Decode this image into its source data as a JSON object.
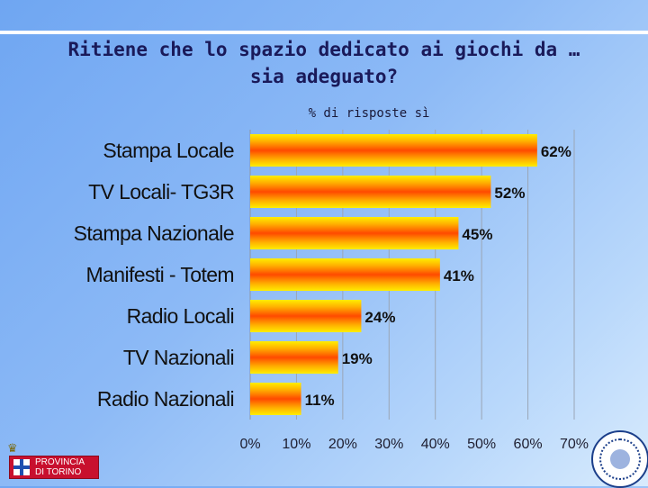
{
  "slide": {
    "title_line1": "Ritiene che lo spazio dedicato ai giochi da …",
    "title_line2": "sia adeguato?",
    "subtitle": "% di risposte sì"
  },
  "logos": {
    "provincia": "PROVINCIA DI TORINO"
  },
  "chart_data": {
    "type": "bar",
    "orientation": "horizontal",
    "categories": [
      "Stampa Locale",
      "TV Locali- TG3R",
      "Stampa Nazionale",
      "Manifesti - Totem",
      "Radio Locali",
      "TV Nazionali",
      "Radio Nazionali"
    ],
    "values": [
      62,
      52,
      45,
      41,
      24,
      19,
      11
    ],
    "value_labels": [
      "62%",
      "52%",
      "45%",
      "41%",
      "24%",
      "19%",
      "11%"
    ],
    "xlim": [
      0,
      70
    ],
    "x_ticks": [
      0,
      10,
      20,
      30,
      40,
      50,
      60,
      70
    ],
    "x_tick_labels": [
      "0%",
      "10%",
      "20%",
      "30%",
      "40%",
      "50%",
      "60%",
      "70%"
    ],
    "grid": true,
    "bar_colors": [
      "#ffee00",
      "#ff9a00",
      "#ff4a00"
    ]
  }
}
